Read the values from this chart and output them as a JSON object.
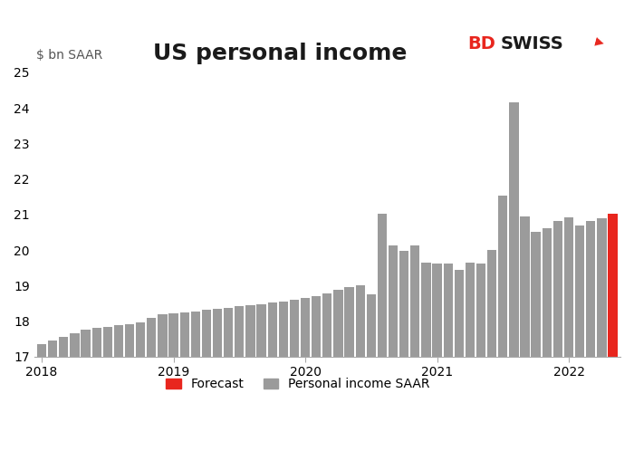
{
  "title": "US personal income",
  "ylabel": "$ bn SAAR",
  "ylim": [
    17,
    25
  ],
  "yticks": [
    17,
    18,
    19,
    20,
    21,
    22,
    23,
    24,
    25
  ],
  "bar_color_normal": "#9b9b9b",
  "bar_color_forecast": "#e8261e",
  "background_color": "#ffffff",
  "legend_forecast": "Forecast",
  "legend_normal": "Personal income SAAR",
  "values": [
    17.35,
    17.45,
    17.55,
    17.65,
    17.75,
    17.8,
    17.83,
    17.88,
    17.92,
    17.97,
    18.1,
    18.18,
    18.22,
    18.25,
    18.28,
    18.32,
    18.35,
    18.38,
    18.42,
    18.45,
    18.48,
    18.52,
    18.55,
    18.6,
    18.65,
    18.7,
    18.78,
    18.88,
    18.95,
    19.0,
    18.75,
    21.02,
    20.12,
    19.98,
    20.12,
    19.65,
    19.62,
    19.62,
    19.45,
    19.65,
    19.62,
    20.0,
    21.52,
    24.15,
    20.95,
    20.5,
    20.62,
    20.82,
    20.92,
    20.7,
    20.82,
    20.88,
    21.02
  ],
  "is_forecast": [
    false,
    false,
    false,
    false,
    false,
    false,
    false,
    false,
    false,
    false,
    false,
    false,
    false,
    false,
    false,
    false,
    false,
    false,
    false,
    false,
    false,
    false,
    false,
    false,
    false,
    false,
    false,
    false,
    false,
    false,
    false,
    false,
    false,
    false,
    false,
    false,
    false,
    false,
    false,
    false,
    false,
    false,
    false,
    false,
    false,
    false,
    false,
    false,
    false,
    false,
    false,
    false,
    true
  ],
  "xtick_positions": [
    0,
    12,
    24,
    36,
    48
  ],
  "xtick_labels": [
    "2018",
    "2019",
    "2020",
    "2021",
    "2022"
  ],
  "title_fontsize": 18,
  "axis_fontsize": 10,
  "legend_fontsize": 10,
  "bdswiss_bd_color": "#e8261e",
  "bdswiss_swiss_color": "#1a1a1a",
  "bar_bottom": 17
}
